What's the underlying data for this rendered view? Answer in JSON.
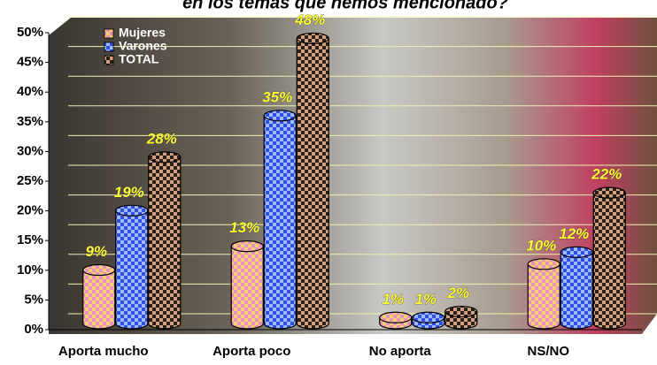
{
  "chart_data": {
    "type": "bar",
    "title": "en los temas que hemos mencionado?",
    "categories": [
      "Aporta mucho",
      "Aporta poco",
      "No aporta",
      "NS/NO"
    ],
    "series": [
      {
        "name": "Mujeres",
        "color": "#f0c060",
        "values": [
          9,
          13,
          1,
          10
        ],
        "value_labels": [
          "9%",
          "13%",
          "1%",
          "10%"
        ]
      },
      {
        "name": "Varones",
        "color": "#3050e0",
        "values": [
          19,
          35,
          1,
          12
        ],
        "value_labels": [
          "19%",
          "35%",
          "1%",
          "12%"
        ]
      },
      {
        "name": "TOTAL",
        "color": "#c09070",
        "values": [
          28,
          48,
          2,
          22
        ],
        "value_labels": [
          "28%",
          "48%",
          "2%",
          "22%"
        ]
      }
    ],
    "ylim": [
      0,
      50
    ],
    "yticks": [
      {
        "value": 0,
        "label": "0%"
      },
      {
        "value": 5,
        "label": "5%"
      },
      {
        "value": 10,
        "label": "10%"
      },
      {
        "value": 15,
        "label": "15%"
      },
      {
        "value": 20,
        "label": "20%"
      },
      {
        "value": 25,
        "label": "25%"
      },
      {
        "value": 30,
        "label": "30%"
      },
      {
        "value": 35,
        "label": "35%"
      },
      {
        "value": 40,
        "label": "40%"
      },
      {
        "value": 45,
        "label": "45%"
      },
      {
        "value": 50,
        "label": "50%"
      }
    ],
    "grid": true
  }
}
